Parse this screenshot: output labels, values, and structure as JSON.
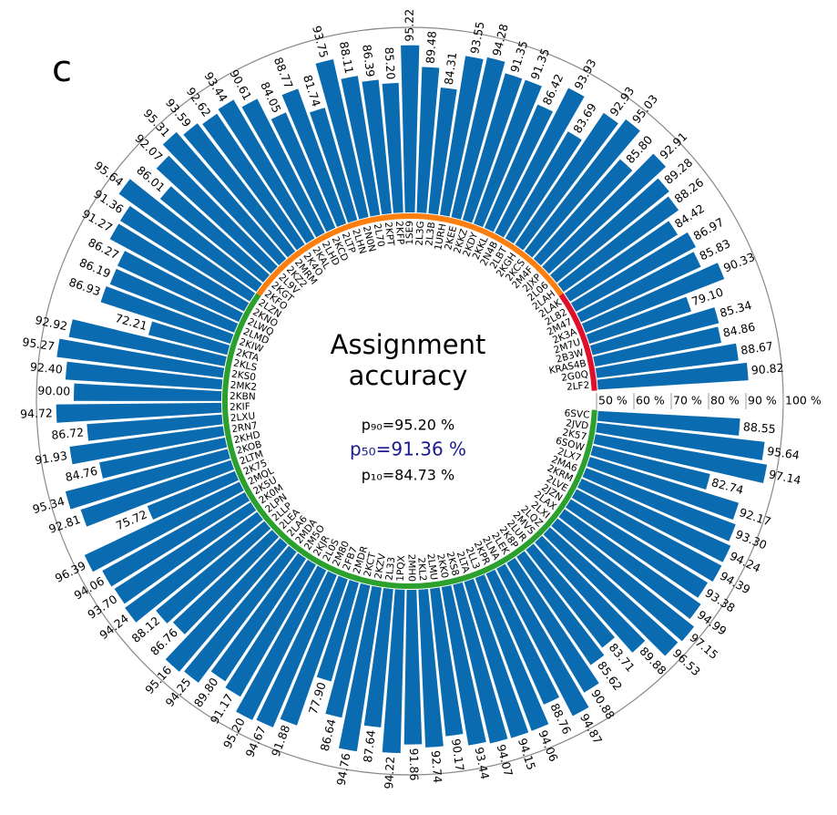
{
  "chart_data": {
    "type": "bar",
    "polar": true,
    "panel_label": "c",
    "title": [
      "Assignment",
      "accuracy"
    ],
    "annotations": [
      "p₉₀=95.20 %",
      "p₅₀=91.36 %",
      "p₁₀=84.73 %"
    ],
    "categories": [
      "6SVC",
      "2JVD",
      "2K57",
      "6SOW",
      "2LX7",
      "2MA6",
      "2KRM",
      "2LVE",
      "2JZN",
      "2LAX",
      "2LXI",
      "2LQZ",
      "2MVS",
      "2LUR",
      "2K8P",
      "2LEK",
      "2LNA",
      "2KPR",
      "2LL3",
      "2LTA",
      "2KS8",
      "2KK0",
      "2LMU",
      "2KL2",
      "2MH0",
      "1PQX",
      "2L33",
      "2KZV",
      "2KCT",
      "2MDR",
      "2FB7",
      "2M80",
      "2L0S",
      "2KJR",
      "2M5O",
      "2MDA",
      "2LA6",
      "2LEA",
      "2LLP",
      "2LPN",
      "2K0M",
      "2K5U",
      "2MQL",
      "2K75",
      "2LTM",
      "2KOB",
      "2KHD",
      "2RN7",
      "2LXU",
      "2KIF",
      "2KBN",
      "2MK2",
      "2KS0",
      "2KLS",
      "2KTA",
      "2KIW",
      "2LMD",
      "2LWQ",
      "2KNO",
      "2LZN",
      "2KFO",
      "2KGT",
      "2L9V",
      "2KZ2",
      "2MRM",
      "2K4O",
      "2KAL",
      "2LHD",
      "2KCD",
      "2LTP",
      "2LHN",
      "2N0N",
      "2L70",
      "2KPT",
      "2KFP",
      "1SE9",
      "2L3G",
      "2L3B",
      "1URH",
      "2KEE",
      "2KKZ",
      "2KDY",
      "2KKL",
      "2N4B",
      "2LBT",
      "2KGH",
      "2KCS",
      "2M4F",
      "2JXP",
      "2L06",
      "2LAH",
      "2LAK",
      "2L82",
      "2M47",
      "2K3A",
      "2M7U",
      "2B3W",
      "KRAS4B",
      "2G0Q",
      "2LF2"
    ],
    "values": [
      88.55,
      95.64,
      97.14,
      82.74,
      92.17,
      93.3,
      94.24,
      94.39,
      93.38,
      94.99,
      97.15,
      96.53,
      89.88,
      83.71,
      85.62,
      90.88,
      94.87,
      88.76,
      94.06,
      94.15,
      94.07,
      93.44,
      90.17,
      92.74,
      91.86,
      94.22,
      87.64,
      94.76,
      86.64,
      77.9,
      91.88,
      94.67,
      95.2,
      91.17,
      89.8,
      94.25,
      95.16,
      86.76,
      88.12,
      94.24,
      93.7,
      94.06,
      96.39,
      75.72,
      92.81,
      95.34,
      84.76,
      91.93,
      86.72,
      94.72,
      90.0,
      92.4,
      95.27,
      92.92,
      72.21,
      86.93,
      86.19,
      86.27,
      91.27,
      91.36,
      95.64,
      86.01,
      92.07,
      95.31,
      93.59,
      92.62,
      93.44,
      90.61,
      84.05,
      88.77,
      81.74,
      93.75,
      88.11,
      86.39,
      85.2,
      95.22,
      89.48,
      84.31,
      93.55,
      94.28,
      91.35,
      91.35,
      86.42,
      93.93,
      83.69,
      92.93,
      95.03,
      85.8,
      92.91,
      89.28,
      88.26,
      84.42,
      86.97,
      85.83,
      90.33,
      79.1,
      85.34,
      84.86,
      88.67,
      90.82
    ],
    "value_labels": [
      "88.55",
      "95.64",
      "97.14",
      "82.74",
      "92.17",
      "93.30",
      "94.24",
      "94.39",
      "93.38",
      "94.99",
      "97.15",
      "96.53",
      "89.88",
      "83.71",
      "85.62",
      "90.88",
      "94.87",
      "88.76",
      "94.06",
      "94.15",
      "94.07",
      "93.44",
      "90.17",
      "92.74",
      "91.86",
      "94.22",
      "87.64",
      "94.76",
      "86.64",
      "77.90",
      "91.88",
      "94.67",
      "95.20",
      "91.17",
      "89.80",
      "94.25",
      "95.16",
      "86.76",
      "88.12",
      "94.24",
      "93.70",
      "94.06",
      "96.39",
      "75.72",
      "92.81",
      "95.34",
      "84.76",
      "91.93",
      "86.72",
      "94.72",
      "90.00",
      "92.40",
      "95.27",
      "92.92",
      "72.21",
      "86.93",
      "86.19",
      "86.27",
      "91.27",
      "91.36",
      "95.64",
      "86.01",
      "92.07",
      "95.31",
      "93.59",
      "92.62",
      "93.44",
      "90.61",
      "84.05",
      "88.77",
      "81.74",
      "93.75",
      "88.11",
      "86.39",
      "85.20",
      "95.22",
      "89.48",
      "84.31",
      "93.55",
      "94.28",
      "91.35",
      "91.35",
      "86.42",
      "93.93",
      "83.69",
      "92.93",
      "95.03",
      "85.80",
      "92.91",
      "89.28",
      "88.26",
      "84.42",
      "86.97",
      "85.83",
      "90.33",
      "79.10",
      "85.34",
      "84.86",
      "88.67",
      "90.82"
    ],
    "color": "#0b6bb0",
    "ylim": [
      50,
      100
    ],
    "yticks": [
      {
        "value": 50,
        "label": "50 %"
      },
      {
        "value": 60,
        "label": "60 %"
      },
      {
        "value": 70,
        "label": "70 %"
      },
      {
        "value": 80,
        "label": "80 %"
      },
      {
        "value": 90,
        "label": "90 %"
      },
      {
        "value": 100,
        "label": "100 %"
      }
    ]
  }
}
